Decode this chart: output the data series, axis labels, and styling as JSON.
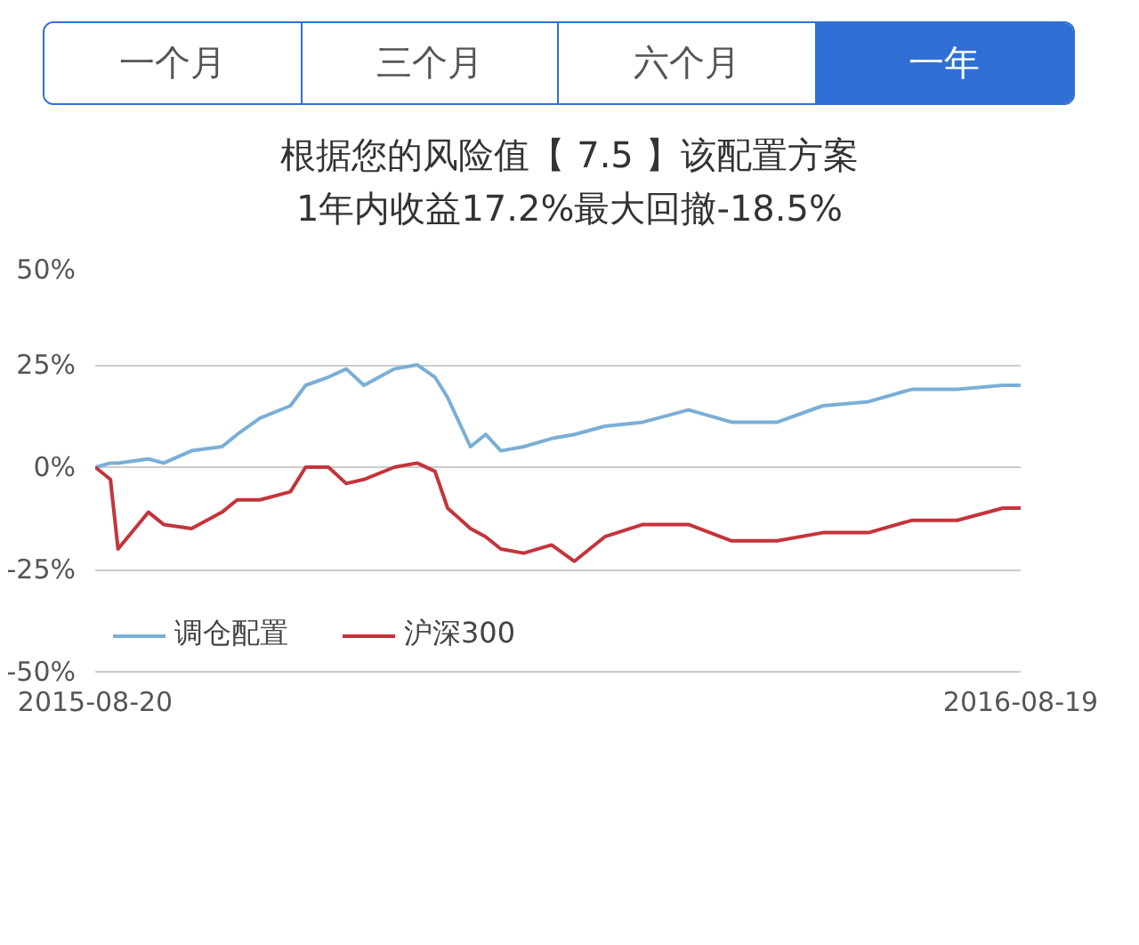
{
  "chart_data": {
    "type": "line",
    "title": "根据您的风险值【 7.5 】该配置方案",
    "subtitle": "1年内收益17.2%最大回撤-18.5%",
    "annotations": [
      "一个月",
      "三个月",
      "六个月",
      "一年"
    ],
    "x": [
      "2015-08-20",
      "2015-08-26",
      "2015-08-29",
      "2015-09-10",
      "2015-09-16",
      "2015-09-27",
      "2015-10-09",
      "2015-10-15",
      "2015-10-24",
      "2015-11-05",
      "2015-11-11",
      "2015-11-20",
      "2015-11-27",
      "2015-12-04",
      "2015-12-16",
      "2015-12-25",
      "2016-01-01",
      "2016-01-06",
      "2016-01-15",
      "2016-01-21",
      "2016-01-27",
      "2016-02-05",
      "2016-02-16",
      "2016-02-25",
      "2016-03-08",
      "2016-03-23",
      "2016-04-10",
      "2016-04-27",
      "2016-05-15",
      "2016-06-02",
      "2016-06-20",
      "2016-07-07",
      "2016-07-25",
      "2016-08-12",
      "2016-08-19"
    ],
    "series": [
      {
        "name": "调仓配置",
        "color": "#7aaed6",
        "values": [
          0,
          1,
          1,
          2,
          1,
          4,
          5,
          8,
          12,
          15,
          20,
          22,
          24,
          20,
          24,
          25,
          22,
          17,
          5,
          8,
          4,
          5,
          7,
          8,
          10,
          11,
          14,
          11,
          11,
          15,
          16,
          19,
          19,
          20,
          20
        ]
      },
      {
        "name": "沪深300",
        "color": "#c4343c",
        "values": [
          0,
          -3,
          -20,
          -11,
          -14,
          -15,
          -11,
          -8,
          -8,
          -6,
          0,
          0,
          -4,
          -3,
          0,
          1,
          -1,
          -10,
          -15,
          -17,
          -20,
          -21,
          -19,
          -23,
          -17,
          -14,
          -14,
          -18,
          -18,
          -16,
          -16,
          -13,
          -13,
          -10,
          -10
        ]
      }
    ],
    "xlim": [
      "2015-08-20",
      "2016-08-19"
    ],
    "xticks": [
      "2015-08-20",
      "2016-08-19"
    ],
    "ylim": [
      -50,
      50
    ],
    "yticks": [
      {
        "value": -50,
        "label": "-50%"
      },
      {
        "value": -25,
        "label": "-25%"
      },
      {
        "value": 0,
        "label": "0%"
      },
      {
        "value": 25,
        "label": "25%"
      },
      {
        "value": 50,
        "label": "50%"
      }
    ],
    "grid": "y",
    "legend": "bottom left",
    "marker": "none",
    "line_style": "solid"
  }
}
